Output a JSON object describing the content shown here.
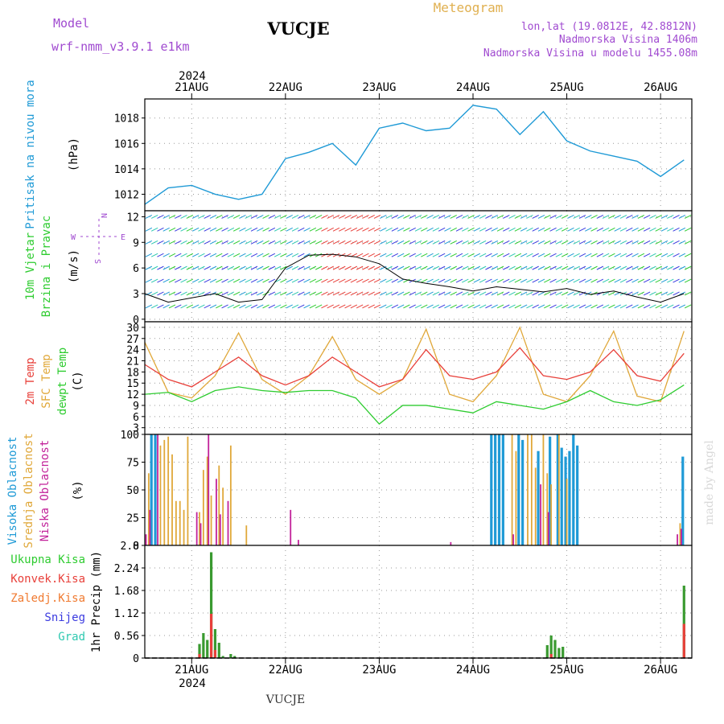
{
  "header": {
    "model_label": "Model",
    "model_name": "wrf-nmm_v3.9.1  e1km",
    "station_title": "VUCJE",
    "meteogram_label": "Meteogram",
    "coords": "lon,lat (19.0812E, 42.8812N)",
    "elevation": "Nadmorska Visina 1406m",
    "model_elevation": "Nadmorska Visina u modelu 1455.08m"
  },
  "footer": {
    "station": "VUCJE",
    "watermark": "made by Angel"
  },
  "colors": {
    "pressure": "#1f9ad6",
    "temp2m": "#e8403a",
    "sfc_temp": "#e0a83a",
    "dewpt": "#2ecc30",
    "cloud_high": "#1f9ad6",
    "cloud_mid": "#e0a83a",
    "cloud_low": "#c2229a",
    "precip_total": "#2ecc30",
    "precip_conv": "#e8403a",
    "precip_frozen": "#f07a30",
    "snow": "#3b3be0",
    "grad": "#2fc9b0"
  },
  "chart_data": [
    {
      "type": "line",
      "panel": "pressure",
      "ylabel_left": "Pritisak na nivou mora",
      "ylabel_unit": "(hPa)",
      "yticks": [
        "1012",
        "1014",
        "1016",
        "1018"
      ],
      "ylim": [
        1010.7,
        1019.5
      ],
      "x_axis_top": {
        "year": "2024",
        "days": [
          "21AUG",
          "22AUG",
          "23AUG",
          "24AUG",
          "25AUG",
          "26AUG"
        ]
      },
      "x_hours": [
        0,
        6,
        12,
        18,
        24,
        30,
        36,
        42,
        48,
        54,
        60,
        66,
        72,
        78,
        84,
        90,
        96,
        102,
        108,
        114,
        120,
        126,
        132,
        138
      ],
      "series": [
        {
          "values": [
            1011.2,
            1012.5,
            1012.7,
            1012.0,
            1011.6,
            1012.0,
            1014.8,
            1015.3,
            1016.0,
            1014.3,
            1017.2,
            1017.6,
            1017.0,
            1017.2,
            1019.0,
            1018.7,
            1016.7,
            1018.5,
            1016.2,
            1015.4,
            1015.0,
            1014.6,
            1013.4,
            1014.7
          ]
        }
      ]
    },
    {
      "type": "line",
      "panel": "wind",
      "ylabel_left": "10m Vjetar",
      "ylabel_left2": "Brzina i Pravac",
      "ylabel_unit": "(m/s)",
      "yticks": [
        "0",
        "3",
        "6",
        "9",
        "12"
      ],
      "ylim": [
        -0.3,
        12.7
      ],
      "compass": {
        "n": "N",
        "e": "E",
        "w": "W",
        "s": "S"
      },
      "series": [
        {
          "values": [
            3.0,
            2.0,
            2.5,
            3.0,
            2.0,
            2.3,
            6.0,
            7.5,
            7.6,
            7.3,
            6.5,
            4.7,
            4.2,
            3.8,
            3.3,
            3.8,
            3.5,
            3.2,
            3.6,
            2.9,
            3.3,
            2.6,
            2.0,
            3.0
          ]
        }
      ]
    },
    {
      "type": "line",
      "panel": "temperature",
      "ylabel_left": "2m Temp",
      "ylabel_left2": "SFC Temp",
      "ylabel_left3": "dewpt Temp",
      "ylabel_unit": "(C)",
      "yticks": [
        "3",
        "6",
        "9",
        "12",
        "15",
        "18",
        "21",
        "24",
        "27",
        "30"
      ],
      "ylim": [
        1.2,
        31.5
      ],
      "series": [
        {
          "name": "2m Temp",
          "values": [
            20.0,
            16.0,
            14.0,
            18.0,
            22.0,
            17.0,
            14.5,
            17.0,
            22.0,
            18.0,
            14.0,
            16.0,
            24.0,
            17.0,
            16.0,
            18.0,
            24.5,
            17.0,
            16.0,
            18.0,
            24.0,
            17.0,
            15.5,
            23.0
          ]
        },
        {
          "name": "SFC Temp",
          "values": [
            26.0,
            12.5,
            11.0,
            17.0,
            28.5,
            16.0,
            12.0,
            17.0,
            27.5,
            16.0,
            12.0,
            16.0,
            29.5,
            12.0,
            10.0,
            17.0,
            30.0,
            12.0,
            10.0,
            17.0,
            29.0,
            11.5,
            10.0,
            29.0
          ]
        },
        {
          "name": "dewpt Temp",
          "values": [
            12.0,
            12.5,
            10.0,
            13.0,
            14.0,
            13.0,
            12.5,
            13.0,
            13.0,
            11.0,
            4.0,
            9.0,
            9.0,
            8.0,
            7.0,
            10.0,
            9.0,
            8.0,
            10.0,
            13.0,
            10.0,
            9.0,
            10.5,
            14.5
          ]
        }
      ]
    },
    {
      "type": "bar",
      "panel": "cloud",
      "ylabel_left": "Visoka Oblacnost",
      "ylabel_left2": "Srednja Oblacnost",
      "ylabel_left3": "Niska Oblacnost",
      "ylabel_unit": "(%)",
      "yticks": [
        "0",
        "25",
        "50",
        "75",
        "100"
      ],
      "ylim": [
        0,
        100
      ],
      "series": [
        {
          "name": "Visoka Oblacnost",
          "x": [
            2,
            3,
            89,
            90,
            91,
            92,
            96,
            97,
            101,
            104,
            106,
            107,
            108,
            109,
            110,
            111,
            138
          ],
          "values": [
            100,
            100,
            100,
            100,
            100,
            100,
            100,
            95,
            85,
            98,
            100,
            88,
            80,
            85,
            100,
            90,
            80
          ]
        },
        {
          "name": "Srednja Oblacnost",
          "x": [
            1,
            4,
            5,
            6,
            7,
            8,
            9,
            10,
            11,
            14,
            15,
            16,
            17,
            19,
            20,
            22,
            26,
            94,
            95,
            98,
            99,
            100,
            102,
            103,
            104,
            106,
            108,
            137
          ],
          "values": [
            65,
            90,
            95,
            98,
            82,
            40,
            40,
            32,
            98,
            30,
            68,
            80,
            45,
            72,
            52,
            90,
            18,
            100,
            85,
            100,
            100,
            70,
            100,
            65,
            55,
            100,
            60,
            20
          ]
        },
        {
          "name": "Niska Oblacnost",
          "x": [
            0,
            1,
            3,
            13,
            14,
            16,
            18,
            19,
            21,
            37,
            39,
            78,
            94,
            101,
            103,
            136,
            137
          ],
          "values": [
            10,
            32,
            100,
            30,
            20,
            100,
            60,
            28,
            40,
            32,
            5,
            3,
            10,
            55,
            30,
            10,
            15
          ]
        }
      ]
    },
    {
      "type": "bar",
      "panel": "precip",
      "ylabel_unit": "1hr Precip (mm)",
      "yticks": [
        "0",
        "0.56",
        "1.12",
        "1.68",
        "2.24",
        "2.8"
      ],
      "ylim": [
        0,
        2.8
      ],
      "legend": [
        "Ukupna  Kisa",
        "Konvek.Kisa",
        "Zaledj.Kisa",
        "Snijeg",
        "Grad"
      ],
      "x_axis_bottom": {
        "year": "2024",
        "days": [
          "21AUG",
          "22AUG",
          "23AUG",
          "24AUG",
          "25AUG",
          "26AUG"
        ]
      },
      "series": [
        {
          "name": "Ukupna  Kisa",
          "x": [
            14,
            15,
            16,
            17,
            18,
            19,
            20,
            22,
            23,
            103,
            104,
            105,
            106,
            107,
            138
          ],
          "values": [
            0.35,
            0.62,
            0.45,
            2.63,
            0.72,
            0.38,
            0.05,
            0.1,
            0.05,
            0.32,
            0.56,
            0.45,
            0.25,
            0.28,
            1.8
          ]
        },
        {
          "name": "Konvek.Kisa",
          "x": [
            14,
            17,
            18,
            104,
            138
          ],
          "values": [
            0.1,
            1.1,
            0.2,
            0.1,
            0.85
          ]
        }
      ]
    }
  ]
}
